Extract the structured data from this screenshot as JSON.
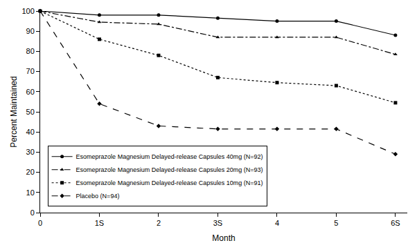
{
  "chart_data": {
    "type": "line",
    "x_label": "Month",
    "y_label": "Percent Maintained",
    "x": [
      0,
      1,
      2,
      3,
      4,
      5,
      6
    ],
    "xlim": [
      0,
      6.2
    ],
    "xticks": [
      0,
      {
        "value": 1,
        "label": "1S"
      },
      2,
      {
        "value": 3,
        "label": "3S"
      },
      4,
      5,
      {
        "value": 6,
        "label": "6S"
      }
    ],
    "ylim": [
      0,
      100
    ],
    "yticks": [
      0,
      10,
      20,
      30,
      40,
      50,
      60,
      70,
      80,
      90,
      100
    ],
    "grid": false,
    "legend": "lower left",
    "series": [
      {
        "name": "Esomeprazole Magnesium Delayed-release Capsules 40mg (N=92)",
        "color": "#000000",
        "line_style": "solid",
        "marker": "circle",
        "values": [
          100,
          98,
          98,
          96.5,
          95,
          95,
          88
        ]
      },
      {
        "name": "Esomeprazole Magnesium Delayed-release Capsules 20mg (N=93)",
        "color": "#000000",
        "line_style": "dashdot",
        "marker": "triangle-up",
        "values": [
          100,
          94.5,
          93.5,
          87,
          87,
          87,
          78.5
        ]
      },
      {
        "name": "Esomeprazole Magnesium Delayed-release Capsules 10mg (N=91)",
        "color": "#000000",
        "line_style": "dot",
        "marker": "square",
        "values": [
          100,
          86,
          78,
          67,
          64.5,
          63,
          54.5
        ]
      },
      {
        "name": "Placebo (N=94)",
        "color": "#000000",
        "line_style": "dash",
        "marker": "diamond",
        "values": [
          100,
          54,
          43,
          41.5,
          41.5,
          41.5,
          29
        ]
      }
    ]
  }
}
